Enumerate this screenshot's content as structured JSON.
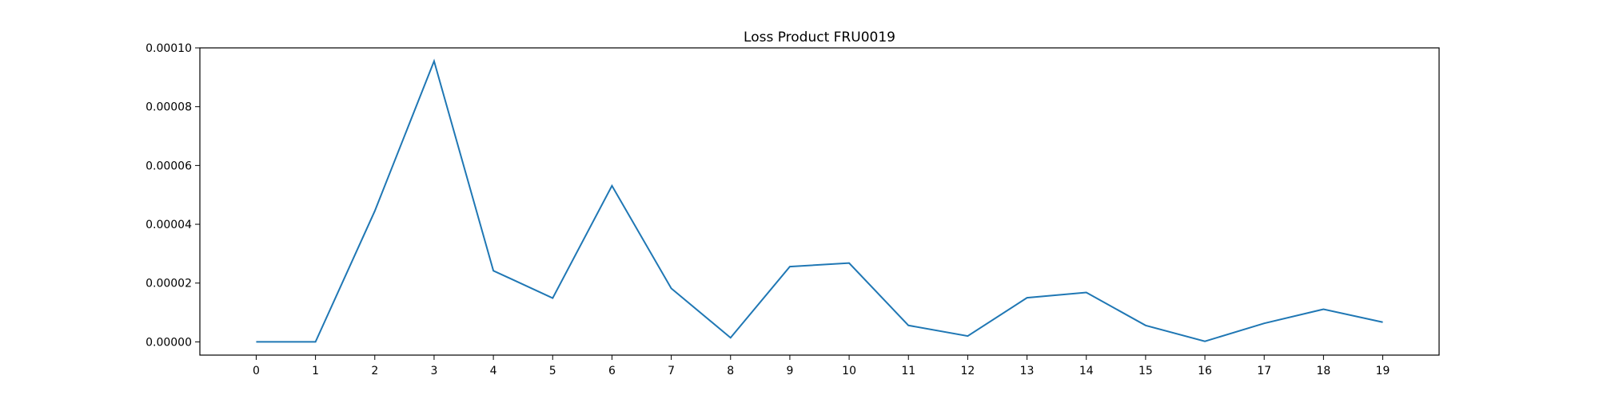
{
  "chart_data": {
    "type": "line",
    "title": "Loss Product FRU0019",
    "xlabel": "",
    "ylabel": "",
    "x": [
      0,
      1,
      2,
      3,
      4,
      5,
      6,
      7,
      8,
      9,
      10,
      11,
      12,
      13,
      14,
      15,
      16,
      17,
      18,
      19
    ],
    "x_tick_labels": [
      "0",
      "1",
      "2",
      "3",
      "4",
      "5",
      "6",
      "7",
      "8",
      "9",
      "10",
      "11",
      "12",
      "13",
      "14",
      "15",
      "16",
      "17",
      "18",
      "19"
    ],
    "series": [
      {
        "color": "#1f77b4",
        "values": [
          0.0,
          0.0,
          4.45e-05,
          9.55e-05,
          2.42e-05,
          1.49e-05,
          5.31e-05,
          1.82e-05,
          1.4e-06,
          2.56e-05,
          2.68e-05,
          5.6e-06,
          2e-06,
          1.5e-05,
          1.68e-05,
          5.6e-06,
          2e-07,
          6.3e-06,
          1.11e-05,
          6.7e-06
        ]
      }
    ],
    "xlim": [
      -0.95,
      19.95
    ],
    "ylim": [
      -4.5e-06,
      0.0001
    ],
    "y_ticks": [
      0.0,
      2e-05,
      4e-05,
      6e-05,
      8e-05,
      0.0001
    ],
    "y_tick_labels": [
      "0.00000",
      "0.00002",
      "0.00004",
      "0.00006",
      "0.00008",
      "0.00010"
    ],
    "grid": false,
    "legend": "none"
  }
}
